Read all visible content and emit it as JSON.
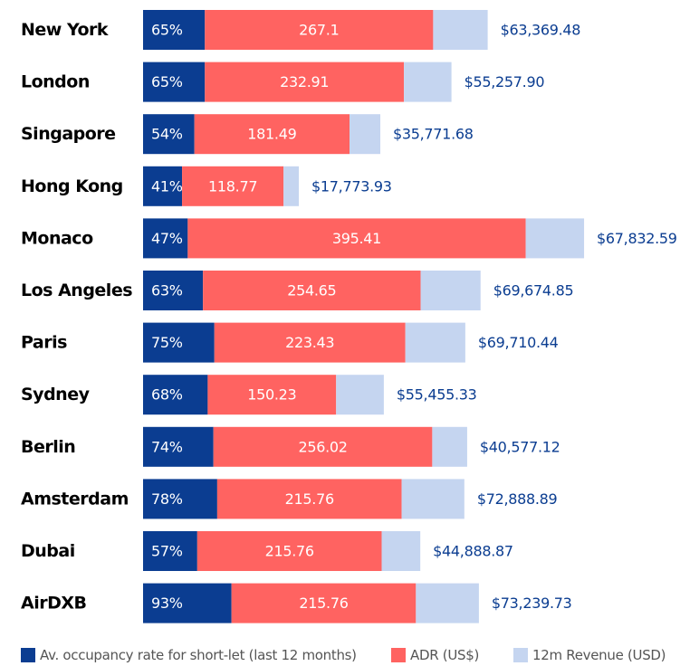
{
  "chart_data": {
    "type": "bar",
    "categories": [
      "New York",
      "London",
      "Singapore",
      "Hong Kong",
      "Monaco",
      "Los Angeles",
      "Paris",
      "Sydney",
      "Berlin",
      "Amsterdam",
      "Dubai",
      "AirDXB"
    ],
    "series": [
      {
        "name": "Av. occupancy rate for short-let (last 12 months)",
        "color": "#0b3d91",
        "values": [
          65,
          65,
          54,
          41,
          47,
          63,
          75,
          68,
          74,
          78,
          57,
          93
        ],
        "value_labels": [
          "65%",
          "65%",
          "54%",
          "41%",
          "47%",
          "63%",
          "75%",
          "68%",
          "74%",
          "78%",
          "57%",
          "93%"
        ]
      },
      {
        "name": "ADR (US$)",
        "color": "#ff6361",
        "values": [
          267.1,
          232.91,
          181.49,
          118.77,
          395.41,
          254.65,
          223.43,
          150.23,
          256.02,
          215.76,
          215.76,
          215.76
        ]
      },
      {
        "name": "12m Revenue (USD)",
        "color": "#c5d5f0",
        "values": [
          63369.48,
          55257.9,
          35771.68,
          17773.93,
          67832.59,
          69674.85,
          69710.44,
          55455.33,
          40577.12,
          72888.89,
          44888.87,
          73239.73
        ],
        "value_labels": [
          "$63,369.48",
          "$55,257.90",
          "$35,771.68",
          "$17,773.93",
          "$67,832.59",
          "$69,674.85",
          "$69,710.44",
          "$55,455.33",
          "$40,577.12",
          "$72,888.89",
          "$44,888.87",
          "$73,239.73"
        ]
      }
    ]
  }
}
